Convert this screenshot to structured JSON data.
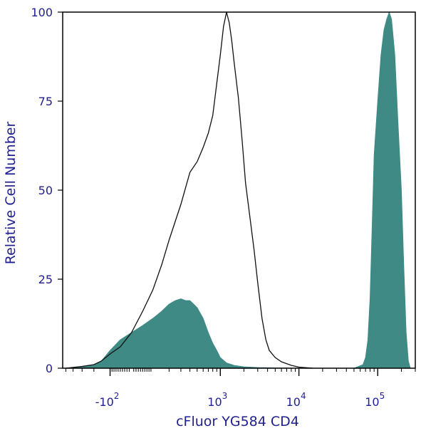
{
  "chart_data": {
    "type": "area",
    "xlabel": "cFluor YG584 CD4",
    "ylabel": "Relative Cell Number",
    "x_scale": "biexponential",
    "y_ticks": [
      {
        "label": "0",
        "value": 0
      },
      {
        "label": "25",
        "value": 25
      },
      {
        "label": "50",
        "value": 50
      },
      {
        "label": "75",
        "value": 75
      },
      {
        "label": "100",
        "value": 100
      }
    ],
    "x_ticks": [
      {
        "base": "-10",
        "exp": "2",
        "value": -100
      },
      {
        "base": "10",
        "exp": "3",
        "value": 1000
      },
      {
        "base": "10",
        "exp": "4",
        "value": 10000
      },
      {
        "base": "10",
        "exp": "5",
        "value": 100000
      }
    ],
    "ylim": [
      0,
      100
    ],
    "grid": false,
    "colors": {
      "filled": "#3f8a85",
      "outline": "#111111",
      "axis": "#1f1f8f",
      "frame": "#000000"
    },
    "series": [
      {
        "style": "filled",
        "points": [
          [
            -500,
            0
          ],
          [
            -300,
            0.5
          ],
          [
            -200,
            1
          ],
          [
            -150,
            2
          ],
          [
            -100,
            5
          ],
          [
            -50,
            8
          ],
          [
            0,
            10
          ],
          [
            50,
            12
          ],
          [
            100,
            14
          ],
          [
            150,
            16
          ],
          [
            200,
            18
          ],
          [
            250,
            19
          ],
          [
            300,
            19.5
          ],
          [
            350,
            19
          ],
          [
            400,
            19
          ],
          [
            450,
            18
          ],
          [
            500,
            17
          ],
          [
            600,
            14
          ],
          [
            700,
            10
          ],
          [
            800,
            7
          ],
          [
            900,
            5
          ],
          [
            1000,
            3
          ],
          [
            1200,
            1.5
          ],
          [
            1500,
            0.8
          ],
          [
            2000,
            0.4
          ],
          [
            3000,
            0.2
          ],
          [
            5000,
            0.1
          ],
          [
            10000,
            0
          ],
          [
            50000,
            0
          ],
          [
            65000,
            1
          ],
          [
            70000,
            3
          ],
          [
            75000,
            8
          ],
          [
            80000,
            20
          ],
          [
            85000,
            40
          ],
          [
            90000,
            60
          ],
          [
            100000,
            75
          ],
          [
            110000,
            88
          ],
          [
            120000,
            95
          ],
          [
            130000,
            98
          ],
          [
            140000,
            100
          ],
          [
            150000,
            98
          ],
          [
            165000,
            88
          ],
          [
            180000,
            70
          ],
          [
            200000,
            50
          ],
          [
            215000,
            28
          ],
          [
            230000,
            10
          ],
          [
            245000,
            2
          ],
          [
            260000,
            0
          ]
        ]
      },
      {
        "style": "outline",
        "points": [
          [
            -500,
            0
          ],
          [
            -300,
            0.5
          ],
          [
            -200,
            1
          ],
          [
            -150,
            2
          ],
          [
            -100,
            4
          ],
          [
            -50,
            6
          ],
          [
            0,
            10
          ],
          [
            50,
            16
          ],
          [
            100,
            22
          ],
          [
            150,
            29
          ],
          [
            200,
            36
          ],
          [
            300,
            46
          ],
          [
            400,
            55
          ],
          [
            500,
            58
          ],
          [
            600,
            62
          ],
          [
            700,
            66
          ],
          [
            800,
            71
          ],
          [
            900,
            80
          ],
          [
            1000,
            88
          ],
          [
            1100,
            96
          ],
          [
            1200,
            100
          ],
          [
            1300,
            97
          ],
          [
            1400,
            92
          ],
          [
            1500,
            86
          ],
          [
            1700,
            76
          ],
          [
            1900,
            64
          ],
          [
            2100,
            52
          ],
          [
            2400,
            42
          ],
          [
            2700,
            33
          ],
          [
            3000,
            24
          ],
          [
            3400,
            14
          ],
          [
            3800,
            8
          ],
          [
            4200,
            5
          ],
          [
            5000,
            3
          ],
          [
            6000,
            1.8
          ],
          [
            8000,
            0.8
          ],
          [
            10000,
            0.3
          ],
          [
            15000,
            0
          ]
        ]
      }
    ]
  }
}
